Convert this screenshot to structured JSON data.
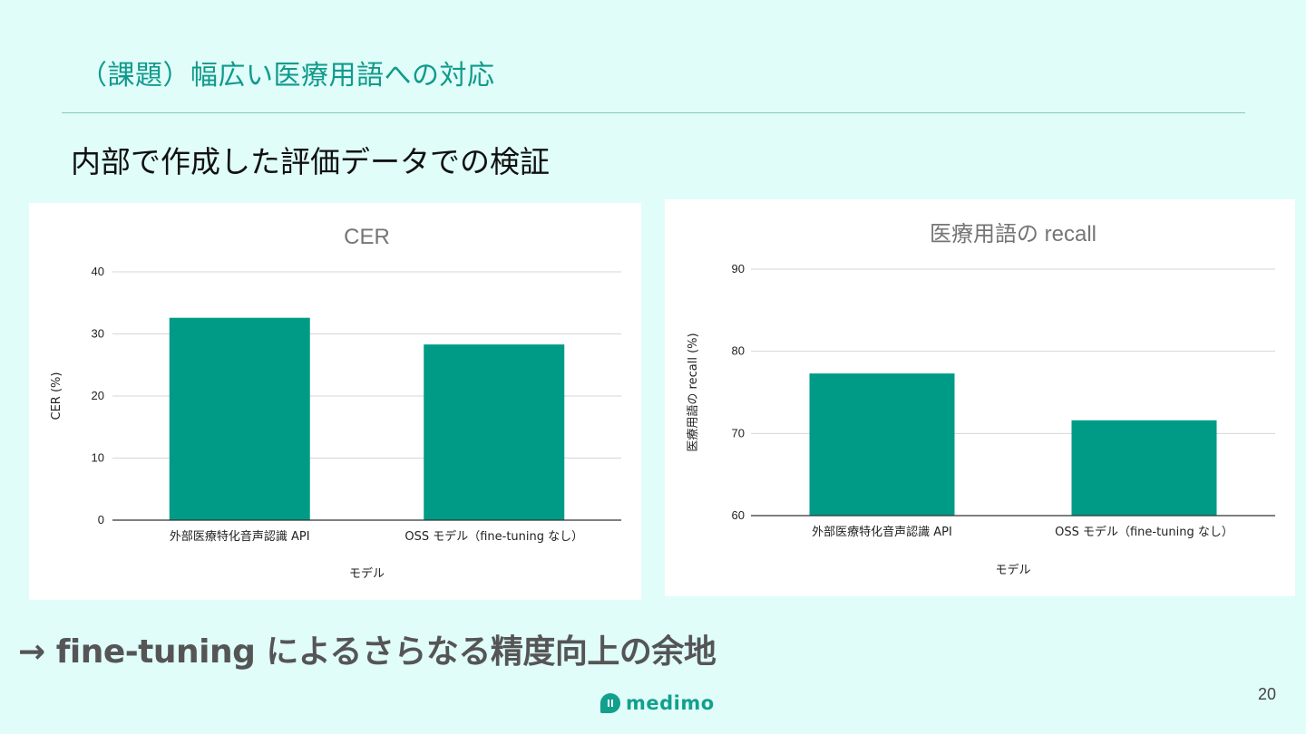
{
  "slide": {
    "title": "（課題）幅広い医療用語への対応",
    "subtitle": "内部で作成した評価データでの検証",
    "conclusion": "→ fine-tuning によるさらなる精度向上の余地",
    "logo_text": "medimo",
    "page_number": "20"
  },
  "colors": {
    "background": "#e0fdf9",
    "title": "#109a8c",
    "bar": "#009b86",
    "logo": "#12a08e"
  },
  "chart_data": [
    {
      "type": "bar",
      "title": "CER",
      "categories": [
        "外部医療特化音声認識 API",
        "OSS モデル（fine-tuning なし）"
      ],
      "values": [
        32.6,
        28.3
      ],
      "xlabel": "モデル",
      "ylabel": "CER (%)",
      "ylim": [
        0,
        40
      ],
      "yticks": [
        0,
        10,
        20,
        30,
        40
      ],
      "ytick_labels": [
        "0",
        "10",
        "20",
        "30",
        "40"
      ],
      "grid": true
    },
    {
      "type": "bar",
      "title": "医療用語の recall",
      "categories": [
        "外部医療特化音声認識 API",
        "OSS モデル（fine-tuning なし）"
      ],
      "values": [
        77.3,
        71.6
      ],
      "xlabel": "モデル",
      "ylabel": "医療用語の recall (%)",
      "ylim": [
        60,
        90
      ],
      "yticks": [
        60,
        70,
        80,
        90
      ],
      "ytick_labels": [
        "60",
        "70",
        "80",
        "90"
      ],
      "grid": true
    }
  ]
}
